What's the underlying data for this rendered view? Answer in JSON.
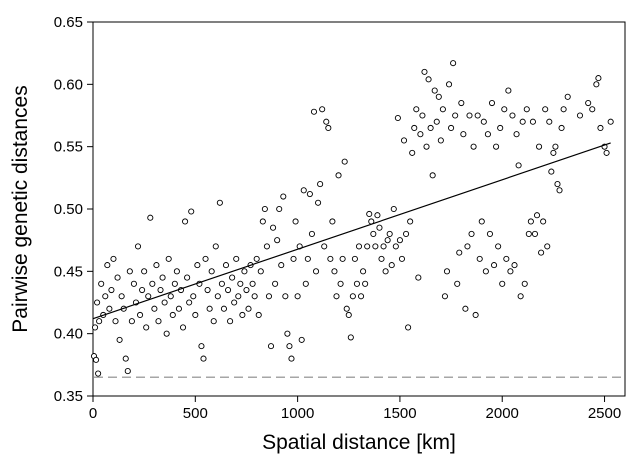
{
  "chart_data": {
    "type": "scatter",
    "title": "",
    "xlabel": "Spatial distance [km]",
    "ylabel": "Pairwise genetic distances",
    "xlim": [
      0,
      2600
    ],
    "ylim": [
      0.35,
      0.65
    ],
    "xticks": [
      0,
      500,
      1000,
      1500,
      2000,
      2500
    ],
    "yticks": [
      0.35,
      0.4,
      0.45,
      0.5,
      0.55,
      0.6,
      0.65
    ],
    "xtick_labels": [
      "0",
      "500",
      "1000",
      "1500",
      "2000",
      "2500"
    ],
    "ytick_labels": [
      "0.35",
      "0.40",
      "0.45",
      "0.50",
      "0.55",
      "0.60",
      "0.65"
    ],
    "grid": false,
    "legend": "none",
    "marker": "open-circle",
    "point_color": "#000000",
    "regression_line": {
      "x": [
        0,
        2530
      ],
      "y": [
        0.412,
        0.553
      ],
      "color": "#000000"
    },
    "reference_line": {
      "y": 0.365,
      "style": "dashed",
      "color": "#a6a6a6"
    },
    "series": [
      {
        "points": [
          [
            5,
            0.382
          ],
          [
            15,
            0.379
          ],
          [
            25,
            0.368
          ],
          [
            10,
            0.405
          ],
          [
            20,
            0.425
          ],
          [
            30,
            0.41
          ],
          [
            40,
            0.44
          ],
          [
            50,
            0.415
          ],
          [
            60,
            0.43
          ],
          [
            70,
            0.455
          ],
          [
            80,
            0.42
          ],
          [
            90,
            0.435
          ],
          [
            100,
            0.46
          ],
          [
            110,
            0.41
          ],
          [
            120,
            0.445
          ],
          [
            130,
            0.395
          ],
          [
            140,
            0.43
          ],
          [
            150,
            0.42
          ],
          [
            160,
            0.38
          ],
          [
            170,
            0.37
          ],
          [
            180,
            0.45
          ],
          [
            190,
            0.41
          ],
          [
            200,
            0.44
          ],
          [
            210,
            0.425
          ],
          [
            220,
            0.47
          ],
          [
            230,
            0.415
          ],
          [
            240,
            0.435
          ],
          [
            250,
            0.45
          ],
          [
            260,
            0.405
          ],
          [
            270,
            0.43
          ],
          [
            280,
            0.493
          ],
          [
            290,
            0.44
          ],
          [
            300,
            0.42
          ],
          [
            310,
            0.455
          ],
          [
            320,
            0.41
          ],
          [
            330,
            0.435
          ],
          [
            340,
            0.445
          ],
          [
            350,
            0.425
          ],
          [
            360,
            0.4
          ],
          [
            370,
            0.46
          ],
          [
            380,
            0.43
          ],
          [
            390,
            0.415
          ],
          [
            400,
            0.44
          ],
          [
            410,
            0.45
          ],
          [
            420,
            0.42
          ],
          [
            430,
            0.435
          ],
          [
            440,
            0.405
          ],
          [
            450,
            0.49
          ],
          [
            460,
            0.445
          ],
          [
            470,
            0.425
          ],
          [
            480,
            0.498
          ],
          [
            490,
            0.43
          ],
          [
            500,
            0.415
          ],
          [
            510,
            0.455
          ],
          [
            520,
            0.44
          ],
          [
            530,
            0.39
          ],
          [
            540,
            0.38
          ],
          [
            550,
            0.46
          ],
          [
            560,
            0.435
          ],
          [
            570,
            0.42
          ],
          [
            580,
            0.45
          ],
          [
            590,
            0.41
          ],
          [
            600,
            0.47
          ],
          [
            610,
            0.43
          ],
          [
            620,
            0.505
          ],
          [
            630,
            0.44
          ],
          [
            640,
            0.42
          ],
          [
            650,
            0.455
          ],
          [
            660,
            0.435
          ],
          [
            670,
            0.41
          ],
          [
            680,
            0.445
          ],
          [
            690,
            0.425
          ],
          [
            700,
            0.46
          ],
          [
            710,
            0.43
          ],
          [
            720,
            0.44
          ],
          [
            730,
            0.415
          ],
          [
            740,
            0.45
          ],
          [
            750,
            0.435
          ],
          [
            760,
            0.42
          ],
          [
            770,
            0.455
          ],
          [
            780,
            0.44
          ],
          [
            790,
            0.43
          ],
          [
            800,
            0.46
          ],
          [
            810,
            0.415
          ],
          [
            820,
            0.45
          ],
          [
            830,
            0.49
          ],
          [
            840,
            0.5
          ],
          [
            850,
            0.47
          ],
          [
            860,
            0.43
          ],
          [
            870,
            0.39
          ],
          [
            880,
            0.485
          ],
          [
            890,
            0.44
          ],
          [
            900,
            0.475
          ],
          [
            910,
            0.5
          ],
          [
            920,
            0.455
          ],
          [
            930,
            0.51
          ],
          [
            940,
            0.43
          ],
          [
            950,
            0.4
          ],
          [
            960,
            0.39
          ],
          [
            970,
            0.38
          ],
          [
            980,
            0.46
          ],
          [
            990,
            0.49
          ],
          [
            1000,
            0.43
          ],
          [
            1010,
            0.47
          ],
          [
            1020,
            0.395
          ],
          [
            1030,
            0.515
          ],
          [
            1040,
            0.44
          ],
          [
            1050,
            0.46
          ],
          [
            1060,
            0.512
          ],
          [
            1070,
            0.48
          ],
          [
            1080,
            0.578
          ],
          [
            1090,
            0.45
          ],
          [
            1100,
            0.505
          ],
          [
            1110,
            0.52
          ],
          [
            1120,
            0.58
          ],
          [
            1130,
            0.47
          ],
          [
            1140,
            0.57
          ],
          [
            1150,
            0.565
          ],
          [
            1160,
            0.46
          ],
          [
            1170,
            0.49
          ],
          [
            1180,
            0.45
          ],
          [
            1190,
            0.43
          ],
          [
            1200,
            0.527
          ],
          [
            1210,
            0.44
          ],
          [
            1220,
            0.46
          ],
          [
            1230,
            0.538
          ],
          [
            1240,
            0.42
          ],
          [
            1250,
            0.415
          ],
          [
            1260,
            0.397
          ],
          [
            1270,
            0.43
          ],
          [
            1280,
            0.46
          ],
          [
            1290,
            0.44
          ],
          [
            1300,
            0.47
          ],
          [
            1310,
            0.43
          ],
          [
            1320,
            0.45
          ],
          [
            1330,
            0.44
          ],
          [
            1340,
            0.47
          ],
          [
            1350,
            0.496
          ],
          [
            1360,
            0.49
          ],
          [
            1370,
            0.48
          ],
          [
            1380,
            0.47
          ],
          [
            1390,
            0.495
          ],
          [
            1400,
            0.485
          ],
          [
            1410,
            0.46
          ],
          [
            1420,
            0.47
          ],
          [
            1430,
            0.45
          ],
          [
            1440,
            0.475
          ],
          [
            1450,
            0.48
          ],
          [
            1460,
            0.455
          ],
          [
            1470,
            0.5
          ],
          [
            1480,
            0.47
          ],
          [
            1490,
            0.573
          ],
          [
            1500,
            0.475
          ],
          [
            1510,
            0.46
          ],
          [
            1520,
            0.555
          ],
          [
            1530,
            0.48
          ],
          [
            1540,
            0.405
          ],
          [
            1550,
            0.49
          ],
          [
            1560,
            0.545
          ],
          [
            1570,
            0.565
          ],
          [
            1580,
            0.58
          ],
          [
            1590,
            0.445
          ],
          [
            1600,
            0.56
          ],
          [
            1610,
            0.575
          ],
          [
            1620,
            0.61
          ],
          [
            1630,
            0.55
          ],
          [
            1640,
            0.604
          ],
          [
            1650,
            0.565
          ],
          [
            1660,
            0.527
          ],
          [
            1670,
            0.595
          ],
          [
            1680,
            0.57
          ],
          [
            1690,
            0.59
          ],
          [
            1700,
            0.555
          ],
          [
            1710,
            0.58
          ],
          [
            1720,
            0.43
          ],
          [
            1730,
            0.45
          ],
          [
            1740,
            0.6
          ],
          [
            1750,
            0.565
          ],
          [
            1760,
            0.617
          ],
          [
            1770,
            0.575
          ],
          [
            1780,
            0.44
          ],
          [
            1790,
            0.465
          ],
          [
            1800,
            0.585
          ],
          [
            1810,
            0.56
          ],
          [
            1820,
            0.42
          ],
          [
            1830,
            0.47
          ],
          [
            1840,
            0.575
          ],
          [
            1850,
            0.48
          ],
          [
            1860,
            0.55
          ],
          [
            1870,
            0.415
          ],
          [
            1880,
            0.575
          ],
          [
            1890,
            0.46
          ],
          [
            1900,
            0.49
          ],
          [
            1910,
            0.57
          ],
          [
            1920,
            0.45
          ],
          [
            1930,
            0.56
          ],
          [
            1940,
            0.48
          ],
          [
            1950,
            0.585
          ],
          [
            1960,
            0.455
          ],
          [
            1970,
            0.55
          ],
          [
            1980,
            0.47
          ],
          [
            1990,
            0.565
          ],
          [
            2000,
            0.44
          ],
          [
            2010,
            0.58
          ],
          [
            2020,
            0.46
          ],
          [
            2030,
            0.595
          ],
          [
            2040,
            0.45
          ],
          [
            2050,
            0.575
          ],
          [
            2060,
            0.455
          ],
          [
            2070,
            0.56
          ],
          [
            2080,
            0.535
          ],
          [
            2090,
            0.43
          ],
          [
            2100,
            0.57
          ],
          [
            2110,
            0.44
          ],
          [
            2120,
            0.58
          ],
          [
            2130,
            0.48
          ],
          [
            2140,
            0.49
          ],
          [
            2150,
            0.57
          ],
          [
            2160,
            0.48
          ],
          [
            2170,
            0.495
          ],
          [
            2180,
            0.55
          ],
          [
            2190,
            0.465
          ],
          [
            2200,
            0.49
          ],
          [
            2210,
            0.58
          ],
          [
            2220,
            0.47
          ],
          [
            2230,
            0.57
          ],
          [
            2240,
            0.53
          ],
          [
            2250,
            0.545
          ],
          [
            2260,
            0.55
          ],
          [
            2270,
            0.52
          ],
          [
            2280,
            0.515
          ],
          [
            2290,
            0.565
          ],
          [
            2300,
            0.58
          ],
          [
            2320,
            0.59
          ],
          [
            2380,
            0.575
          ],
          [
            2420,
            0.585
          ],
          [
            2440,
            0.58
          ],
          [
            2460,
            0.6
          ],
          [
            2470,
            0.605
          ],
          [
            2480,
            0.565
          ],
          [
            2500,
            0.55
          ],
          [
            2510,
            0.545
          ],
          [
            2530,
            0.57
          ]
        ]
      }
    ]
  }
}
